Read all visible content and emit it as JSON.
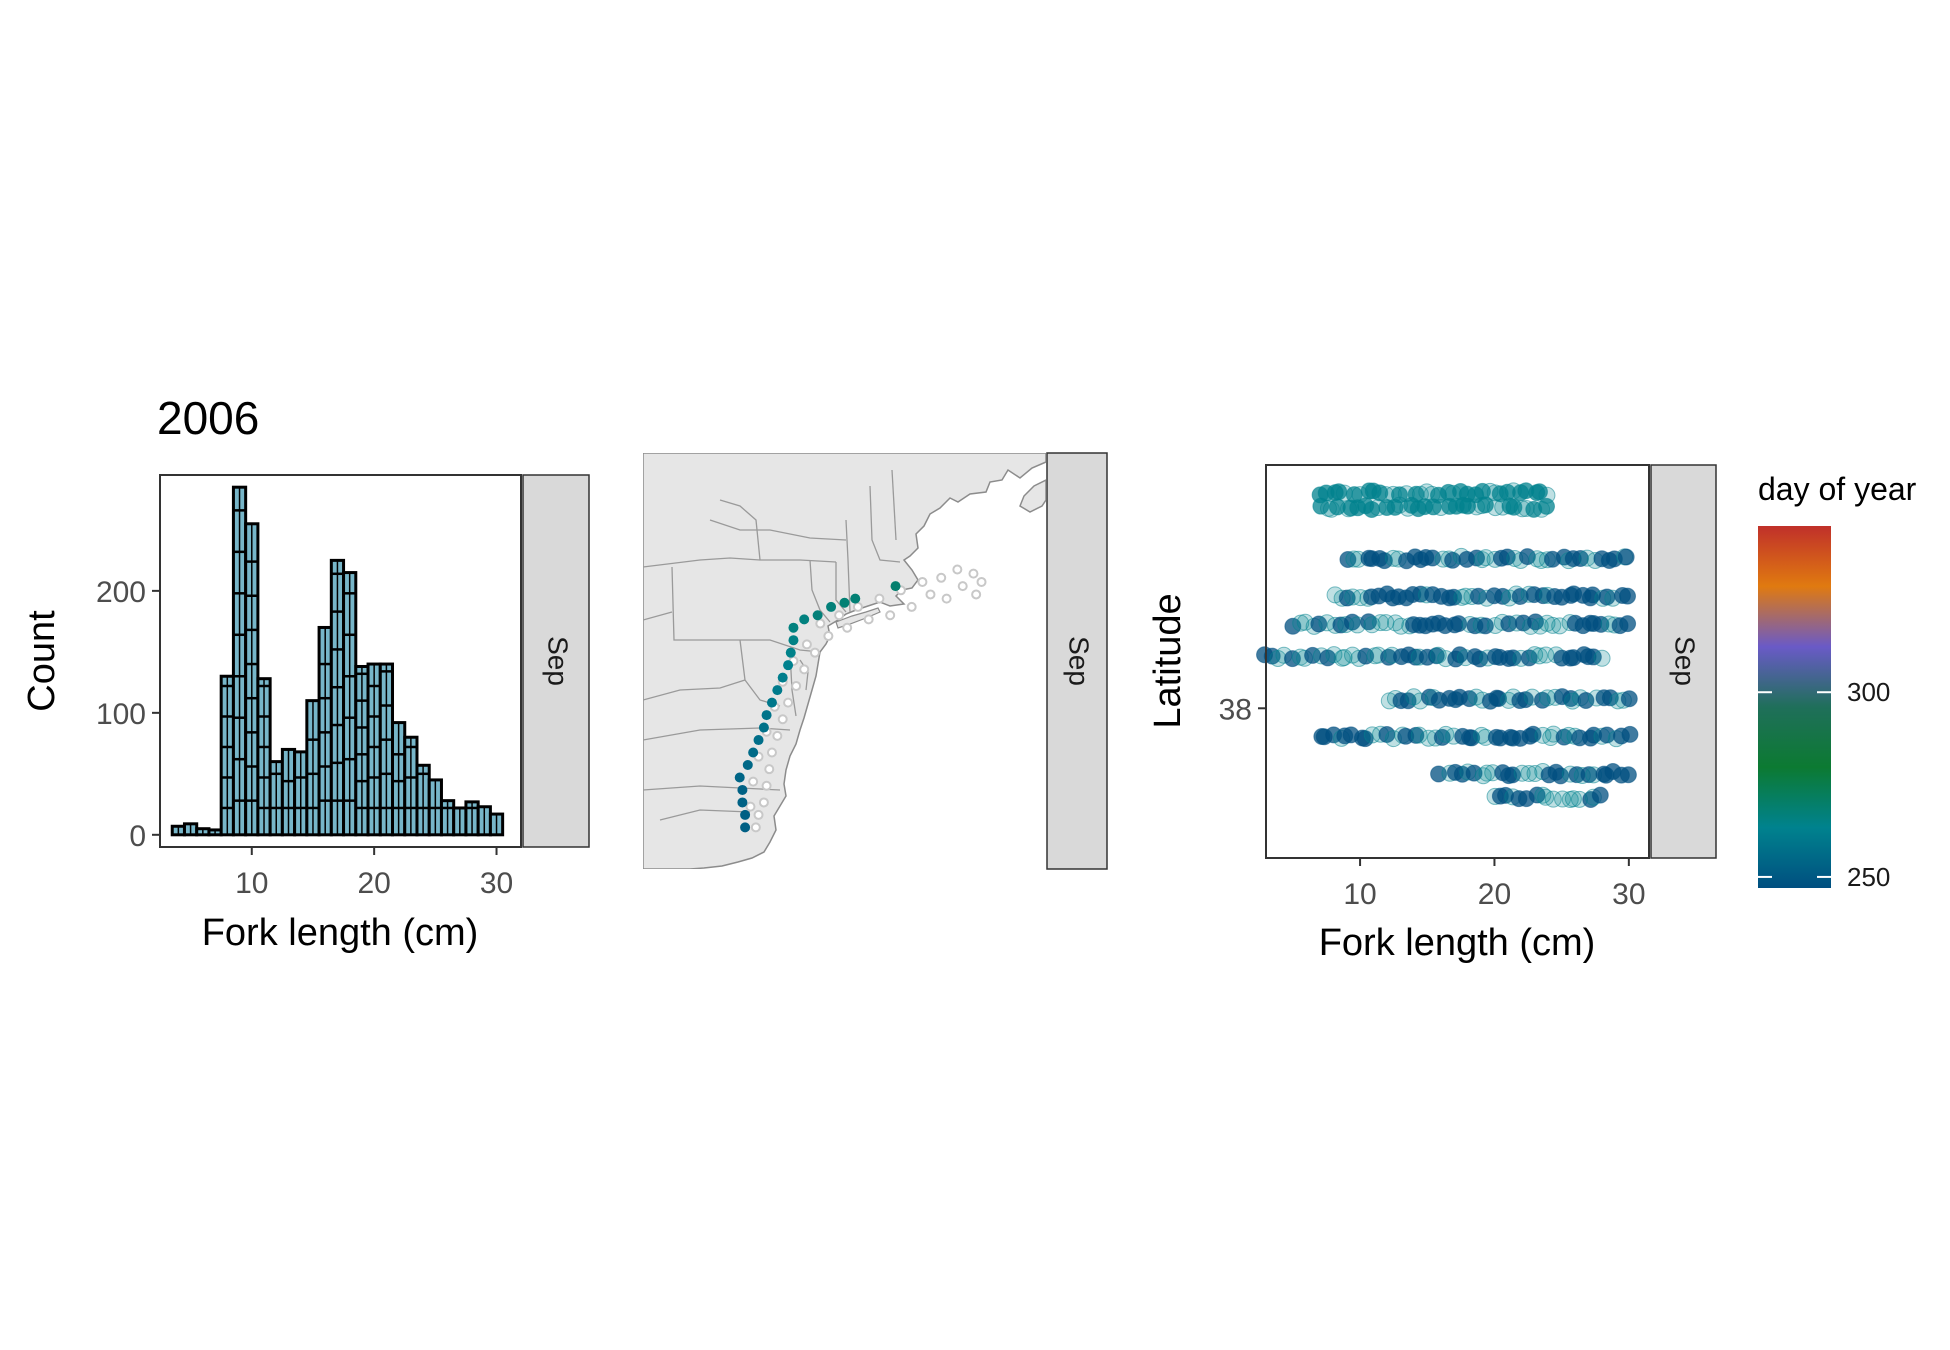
{
  "figure": {
    "title": "2006",
    "facet_label": "Sep",
    "colors": {
      "bar_fill": "#77b6c9",
      "bar_edge": "#000000",
      "strip_fill": "#d9d9d9",
      "land": "#e6e6e6",
      "border": "#9a9a9a",
      "station_open": "#c8c8c8",
      "point_dark": "#004f80",
      "point_teal": "#00828e"
    }
  },
  "chart_data": [
    {
      "type": "bar",
      "name": "length-histogram",
      "xlabel": "Fork length (cm)",
      "ylabel": "Count",
      "xlim": [
        2.5,
        32
      ],
      "ylim": [
        -10,
        295
      ],
      "xticks": [
        10,
        20,
        30
      ],
      "yticks": [
        0,
        100,
        200
      ],
      "grid": false,
      "bar_width": 1,
      "x": [
        4,
        5,
        6,
        7,
        8,
        9,
        10,
        11,
        12,
        13,
        14,
        15,
        16,
        17,
        18,
        19,
        20,
        21,
        22,
        23,
        24,
        25,
        26,
        27,
        28,
        29,
        30
      ],
      "values": [
        7,
        9,
        5,
        4,
        130,
        285,
        255,
        128,
        60,
        70,
        68,
        110,
        170,
        225,
        215,
        138,
        140,
        140,
        92,
        80,
        57,
        45,
        28,
        22,
        27,
        23,
        17
      ]
    },
    {
      "type": "map",
      "name": "station-map",
      "region": "US Northeast coast",
      "facet_label": "Sep",
      "legend": "none",
      "stations_open_lonlat": [
        [
          -75.3,
          35.5
        ],
        [
          -75.2,
          35.8
        ],
        [
          -75.0,
          36.1
        ],
        [
          -74.9,
          36.5
        ],
        [
          -74.8,
          36.9
        ],
        [
          -74.7,
          37.3
        ],
        [
          -74.5,
          37.7
        ],
        [
          -74.3,
          38.1
        ],
        [
          -74.1,
          38.5
        ],
        [
          -73.8,
          38.9
        ],
        [
          -73.5,
          39.3
        ],
        [
          -73.1,
          39.7
        ],
        [
          -72.6,
          40.1
        ],
        [
          -71.9,
          40.3
        ],
        [
          -71.1,
          40.5
        ],
        [
          -70.3,
          40.6
        ],
        [
          -69.5,
          40.8
        ],
        [
          -68.8,
          41.1
        ],
        [
          -68.2,
          41.0
        ],
        [
          -67.6,
          41.3
        ],
        [
          -67.1,
          41.1
        ],
        [
          -75.5,
          36.0
        ],
        [
          -75.4,
          36.6
        ],
        [
          -75.2,
          37.2
        ],
        [
          -74.9,
          37.8
        ],
        [
          -74.6,
          38.4
        ],
        [
          -74.3,
          39.0
        ],
        [
          -73.9,
          39.5
        ],
        [
          -73.4,
          39.9
        ],
        [
          -72.9,
          40.4
        ],
        [
          -72.2,
          40.6
        ],
        [
          -71.5,
          40.8
        ],
        [
          -70.7,
          41.0
        ],
        [
          -69.9,
          41.2
        ],
        [
          -69.1,
          41.4
        ],
        [
          -68.4,
          41.5
        ],
        [
          -67.8,
          41.7
        ],
        [
          -67.2,
          41.6
        ],
        [
          -66.9,
          41.4
        ]
      ],
      "points_lonlat_doy": [
        [
          -75.7,
          35.5,
          252
        ],
        [
          -75.7,
          35.8,
          252
        ],
        [
          -75.8,
          36.1,
          253
        ],
        [
          -75.8,
          36.4,
          253
        ],
        [
          -75.9,
          36.7,
          254
        ],
        [
          -75.6,
          37.0,
          255
        ],
        [
          -75.4,
          37.3,
          256
        ],
        [
          -75.2,
          37.6,
          257
        ],
        [
          -75.0,
          37.9,
          258
        ],
        [
          -74.9,
          38.2,
          259
        ],
        [
          -74.7,
          38.5,
          260
        ],
        [
          -74.5,
          38.8,
          261
        ],
        [
          -74.3,
          39.1,
          262
        ],
        [
          -74.1,
          39.4,
          263
        ],
        [
          -74.0,
          39.7,
          264
        ],
        [
          -73.9,
          40.0,
          265
        ],
        [
          -73.9,
          40.3,
          266
        ],
        [
          -73.5,
          40.5,
          266
        ],
        [
          -73.0,
          40.6,
          267
        ],
        [
          -72.5,
          40.8,
          267
        ],
        [
          -72.0,
          40.9,
          268
        ],
        [
          -71.6,
          41.0,
          268
        ],
        [
          -70.1,
          41.3,
          269
        ]
      ]
    },
    {
      "type": "scatter",
      "name": "latitude-vs-length",
      "xlabel": "Fork length (cm)",
      "ylabel": "Latitude",
      "facet_label": "Sep",
      "xlim": [
        3,
        31.5
      ],
      "ylim": [
        36.4,
        40.6
      ],
      "xticks": [
        10,
        20,
        30
      ],
      "yticks": [
        38
      ],
      "grid": false,
      "rows_lat": [
        40.3,
        40.15,
        39.6,
        39.2,
        38.9,
        38.55,
        38.1,
        37.7,
        37.3,
        37.05
      ],
      "rows_x_range": [
        [
          7,
          24
        ],
        [
          7,
          24
        ],
        [
          9,
          30
        ],
        [
          8,
          30
        ],
        [
          5,
          30
        ],
        [
          3,
          28
        ],
        [
          12,
          30
        ],
        [
          7,
          30
        ],
        [
          16,
          30
        ],
        [
          20,
          28
        ]
      ]
    }
  ],
  "legend": {
    "title": "day of year",
    "range": [
      247,
      345
    ],
    "ticks": [
      250,
      300
    ],
    "gradient": [
      "#004f80",
      "#00828e",
      "#0c7a32",
      "#1f6f5a",
      "#6a5ac7",
      "#e07a10",
      "#c0302a"
    ]
  }
}
